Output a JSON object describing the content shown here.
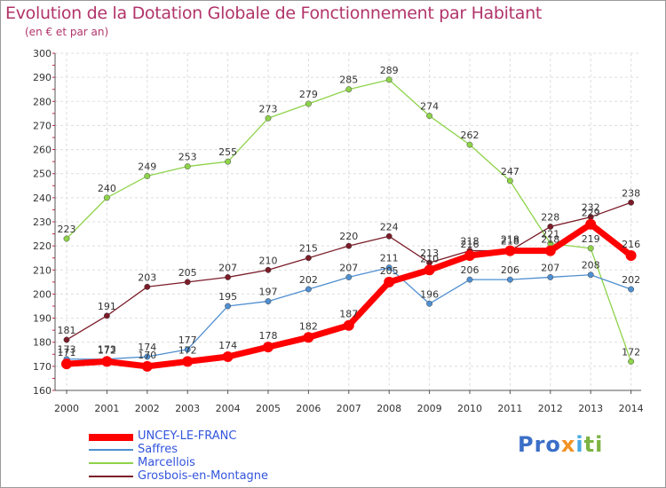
{
  "title": "Evolution de la Dotation Globale de Fonctionnement par Habitant",
  "subtitle": "(en € et par an)",
  "logo": {
    "part1": "Pro",
    "part2": "x",
    "part3": "i",
    "part4": "ti"
  },
  "chart_data": {
    "type": "line",
    "x": [
      2000,
      2001,
      2002,
      2003,
      2004,
      2005,
      2006,
      2007,
      2008,
      2009,
      2010,
      2011,
      2012,
      2013,
      2014
    ],
    "ylim": [
      160,
      300
    ],
    "yticks": [
      160,
      170,
      180,
      190,
      200,
      210,
      220,
      230,
      240,
      250,
      260,
      270,
      280,
      290,
      300
    ],
    "grid": true,
    "legend_position": "bottom-left",
    "series": [
      {
        "name": "Grosbois-en-Montagne",
        "color": "#7b1c28",
        "values": [
          181,
          191,
          203,
          205,
          207,
          210,
          215,
          220,
          224,
          213,
          218,
          218,
          228,
          232,
          238
        ]
      },
      {
        "name": "Marcellois",
        "color": "#8ed34a",
        "values": [
          223,
          240,
          249,
          253,
          255,
          273,
          279,
          285,
          289,
          274,
          262,
          247,
          221,
          219,
          172
        ]
      },
      {
        "name": "Saffres",
        "color": "#4f8fd0",
        "values": [
          173,
          173,
          174,
          177,
          195,
          197,
          202,
          207,
          211,
          196,
          206,
          206,
          207,
          208,
          202
        ]
      },
      {
        "name": "UNCEY-LE-FRANC",
        "color": "#ff0000",
        "values": [
          171,
          172,
          170,
          172,
          174,
          178,
          182,
          187,
          205,
          210,
          216,
          218,
          218,
          229,
          216
        ]
      }
    ]
  }
}
